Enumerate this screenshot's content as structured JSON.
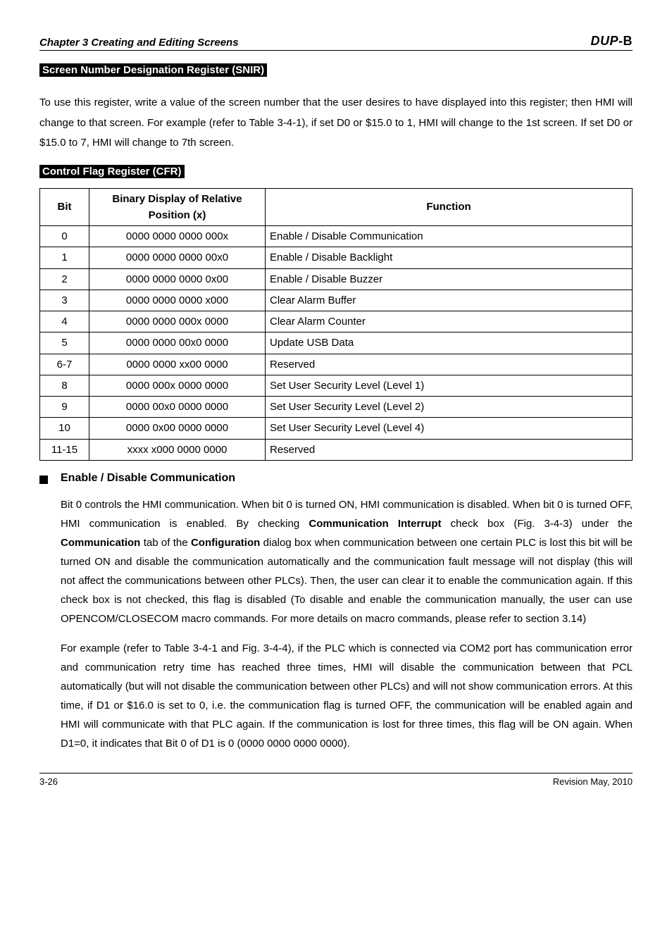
{
  "header": {
    "chapter": "Chapter 3 Creating and Editing Screens",
    "logo_a": "DUP",
    "logo_b": "-B"
  },
  "snir": {
    "heading": "Screen Number Designation Register (SNIR)",
    "body": "To use this register, write a value of the screen number that the user desires to have displayed into this register; then HMI will change to that screen. For example (refer to Table 3-4-1), if set D0 or $15.0 to 1, HMI will change to the 1st screen. If set D0 or $15.0 to 7, HMI will change to 7th screen."
  },
  "cfr": {
    "heading": "Control Flag Register (CFR)",
    "columns": {
      "bit": "Bit",
      "bin": "Binary Display of Relative Position (x)",
      "fn": "Function"
    },
    "rows": [
      {
        "bit": "0",
        "bin": "0000 0000 0000 000x",
        "fn": "Enable / Disable Communication"
      },
      {
        "bit": "1",
        "bin": "0000 0000 0000 00x0",
        "fn": "Enable / Disable Backlight"
      },
      {
        "bit": "2",
        "bin": "0000 0000 0000 0x00",
        "fn": "Enable / Disable Buzzer"
      },
      {
        "bit": "3",
        "bin": "0000 0000 0000 x000",
        "fn": "Clear Alarm Buffer"
      },
      {
        "bit": "4",
        "bin": "0000 0000 000x 0000",
        "fn": "Clear Alarm Counter"
      },
      {
        "bit": "5",
        "bin": "0000 0000 00x0 0000",
        "fn": "Update USB Data"
      },
      {
        "bit": "6-7",
        "bin": "0000 0000 xx00 0000",
        "fn": "Reserved"
      },
      {
        "bit": "8",
        "bin": "0000 000x 0000 0000",
        "fn": "Set User Security Level (Level 1)"
      },
      {
        "bit": "9",
        "bin": "0000 00x0 0000 0000",
        "fn": "Set User Security Level (Level 2)"
      },
      {
        "bit": "10",
        "bin": "0000 0x00 0000 0000",
        "fn": "Set User Security Level (Level 4)"
      },
      {
        "bit": "11-15",
        "bin": "xxxx x000 0000 0000",
        "fn": "Reserved"
      }
    ]
  },
  "section": {
    "title": "Enable / Disable Communication",
    "p1_a": "Bit 0 controls the HMI communication. When bit 0 is turned ON, HMI communication is disabled. When bit 0 is turned OFF, HMI communication is enabled. By checking ",
    "p1_b1": "Communication Interrupt",
    "p1_c": " check box (Fig. 3-4-3) under the ",
    "p1_b2": "Communication",
    "p1_d": " tab of the ",
    "p1_b3": "Configuration",
    "p1_e": " dialog box when communication between one certain PLC is lost this bit will be turned ON and disable the communication automatically and the communication fault message will not display (this will not affect the communications between other PLCs). Then, the user can clear it to enable the communication again. If this check box is not checked, this flag is disabled (To disable and enable the communication manually, the user can use OPENCOM/CLOSECOM macro commands. For more details on macro commands, please refer to section 3.14)",
    "p2": "For example (refer to Table 3-4-1 and Fig. 3-4-4), if the PLC which is connected via COM2 port has communication error and communication retry time has reached three times, HMI will disable the communication between that PCL automatically (but will not disable the communication between other PLCs) and will not show communication errors. At this time, if D1 or $16.0 is set to 0, i.e. the communication flag is turned OFF, the communication will be enabled again and HMI will communicate with that PLC again. If the communication is lost for three times, this flag will be ON again. When D1=0, it indicates that Bit 0 of D1 is 0 (0000 0000 0000 0000)."
  },
  "footer": {
    "page": "3-26",
    "rev": "Revision May, 2010"
  }
}
